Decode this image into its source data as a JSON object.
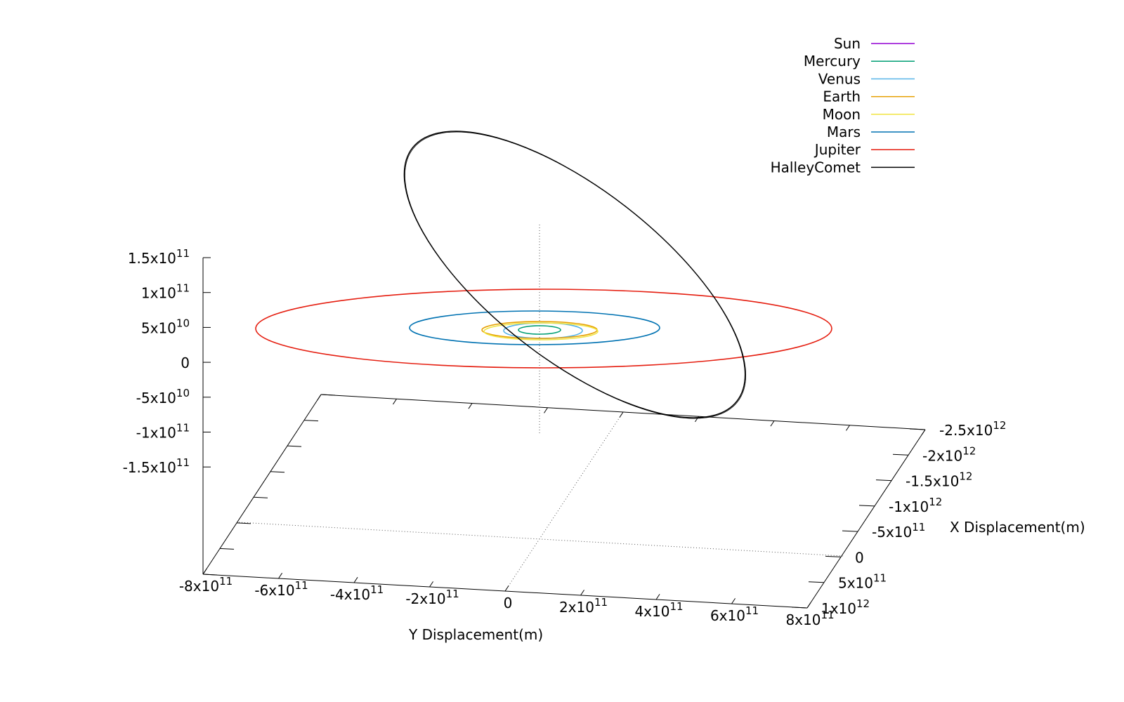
{
  "chart_data": {
    "type": "line",
    "subtype": "3d-orbits",
    "title": "",
    "xlabel": "X Displacement(m)",
    "ylabel": "Y Displacement(m)",
    "zlabel": "",
    "legend_position": "top-right",
    "grid": false,
    "xticks": [
      "-2.5x10^12",
      "-2x10^12",
      "-1.5x10^12",
      "-1x10^12",
      "-5x10^11",
      "0",
      "5x10^11",
      "1x10^12"
    ],
    "yticks": [
      "-8x10^11",
      "-6x10^11",
      "-4x10^11",
      "-2x10^11",
      "0",
      "2x10^11",
      "4x10^11",
      "6x10^11",
      "8x10^11"
    ],
    "zticks": [
      "1.5x10^11",
      "1x10^11",
      "5x10^10",
      "0",
      "-5x10^10",
      "-1x10^11",
      "-1.5x10^11"
    ],
    "series": [
      {
        "name": "Sun",
        "color": "#9400d3",
        "semi_axis_m": 0
      },
      {
        "name": "Mercury",
        "color": "#009e73",
        "semi_axis_m": 58000000000.0
      },
      {
        "name": "Venus",
        "color": "#56b4e9",
        "semi_axis_m": 108000000000.0
      },
      {
        "name": "Earth",
        "color": "#e69f00",
        "semi_axis_m": 150000000000.0
      },
      {
        "name": "Moon",
        "color": "#f0e442",
        "semi_axis_m": 150000000000.0
      },
      {
        "name": "Mars",
        "color": "#0072b2",
        "semi_axis_m": 228000000000.0
      },
      {
        "name": "Jupiter",
        "color": "#e51e10",
        "semi_axis_m": 778000000000.0
      },
      {
        "name": "HalleyComet",
        "color": "#000000",
        "perihelion_m": 88000000000.0,
        "aphelion_m": 5250000000000.0
      }
    ]
  }
}
